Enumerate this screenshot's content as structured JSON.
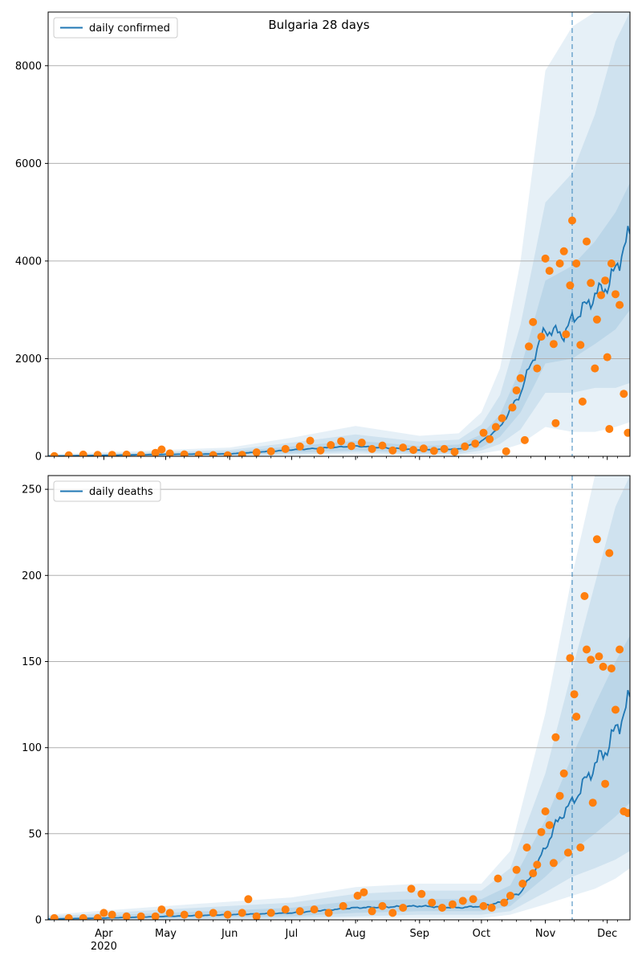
{
  "title": "Bulgaria 28 days",
  "colors": {
    "model_line": "#1f77b4",
    "observed": "#ff7f0e",
    "band": "#1f77b4",
    "grid": "#b0b0b0",
    "vline": "#1f77b4"
  },
  "x_ticks": {
    "major": [
      {
        "label": "Apr",
        "date": "2020-04-01"
      },
      {
        "label": "May",
        "date": "2020-05-01"
      },
      {
        "label": "Jun",
        "date": "2020-06-01"
      },
      {
        "label": "Jul",
        "date": "2020-07-01"
      },
      {
        "label": "Aug",
        "date": "2020-08-01"
      },
      {
        "label": "Sep",
        "date": "2020-09-01"
      },
      {
        "label": "Oct",
        "date": "2020-10-01"
      },
      {
        "label": "Nov",
        "date": "2020-11-01"
      },
      {
        "label": "Dec",
        "date": "2020-12-01"
      }
    ],
    "year_label": "2020"
  },
  "chart_data": [
    {
      "type": "line",
      "legend": "daily confirmed",
      "legend_position": "top-left",
      "grid": "horizontal",
      "xlim": [
        "2020-03-05",
        "2020-12-12"
      ],
      "ylim": [
        0,
        9100
      ],
      "yticks": [
        0,
        2000,
        4000,
        6000,
        8000
      ],
      "forecast_start": "2020-11-14",
      "model_points": [
        [
          "2020-03-05",
          5
        ],
        [
          "2020-04-01",
          20
        ],
        [
          "2020-05-01",
          40
        ],
        [
          "2020-06-01",
          50
        ],
        [
          "2020-07-01",
          130
        ],
        [
          "2020-08-01",
          210
        ],
        [
          "2020-09-01",
          130
        ],
        [
          "2020-09-20",
          150
        ],
        [
          "2020-10-01",
          300
        ],
        [
          "2020-10-10",
          600
        ],
        [
          "2020-10-20",
          1300
        ],
        [
          "2020-10-25",
          1900
        ],
        [
          "2020-11-01",
          2600
        ],
        [
          "2020-11-05",
          2550
        ],
        [
          "2020-11-10",
          2500
        ],
        [
          "2020-11-14",
          2800
        ],
        [
          "2020-11-20",
          3050
        ],
        [
          "2020-11-25",
          3300
        ],
        [
          "2020-12-01",
          3500
        ],
        [
          "2020-12-05",
          3800
        ],
        [
          "2020-12-09",
          4300
        ],
        [
          "2020-12-12",
          4500
        ]
      ],
      "band_inner": [
        [
          "2020-03-05",
          0,
          15
        ],
        [
          "2020-06-01",
          20,
          90
        ],
        [
          "2020-07-01",
          70,
          200
        ],
        [
          "2020-08-01",
          120,
          320
        ],
        [
          "2020-09-01",
          70,
          210
        ],
        [
          "2020-09-20",
          90,
          240
        ],
        [
          "2020-10-01",
          180,
          450
        ],
        [
          "2020-10-10",
          400,
          850
        ],
        [
          "2020-10-20",
          900,
          1800
        ],
        [
          "2020-11-01",
          1900,
          3600
        ],
        [
          "2020-11-14",
          2000,
          3900
        ],
        [
          "2020-11-25",
          2300,
          4400
        ],
        [
          "2020-12-05",
          2600,
          5000
        ],
        [
          "2020-12-12",
          3000,
          5600
        ]
      ],
      "band_middle": [
        [
          "2020-03-05",
          0,
          25
        ],
        [
          "2020-06-01",
          10,
          130
        ],
        [
          "2020-07-01",
          40,
          280
        ],
        [
          "2020-08-01",
          80,
          450
        ],
        [
          "2020-09-01",
          40,
          300
        ],
        [
          "2020-09-20",
          50,
          340
        ],
        [
          "2020-10-01",
          120,
          650
        ],
        [
          "2020-10-10",
          250,
          1250
        ],
        [
          "2020-10-20",
          550,
          2700
        ],
        [
          "2020-11-01",
          1300,
          5200
        ],
        [
          "2020-11-14",
          1300,
          5800
        ],
        [
          "2020-11-25",
          1400,
          7000
        ],
        [
          "2020-12-05",
          1400,
          8500
        ],
        [
          "2020-12-12",
          1500,
          9100
        ]
      ],
      "band_outer": [
        [
          "2020-03-05",
          0,
          40
        ],
        [
          "2020-06-01",
          0,
          180
        ],
        [
          "2020-07-01",
          20,
          380
        ],
        [
          "2020-08-01",
          40,
          620
        ],
        [
          "2020-09-01",
          20,
          420
        ],
        [
          "2020-09-20",
          20,
          470
        ],
        [
          "2020-10-01",
          60,
          900
        ],
        [
          "2020-10-10",
          120,
          1800
        ],
        [
          "2020-10-20",
          250,
          4000
        ],
        [
          "2020-11-01",
          600,
          7900
        ],
        [
          "2020-11-14",
          500,
          8800
        ],
        [
          "2020-11-25",
          500,
          9100
        ],
        [
          "2020-12-05",
          600,
          9100
        ],
        [
          "2020-12-12",
          700,
          9100
        ]
      ],
      "observed": [
        [
          "2020-03-08",
          4
        ],
        [
          "2020-03-15",
          20
        ],
        [
          "2020-03-22",
          35
        ],
        [
          "2020-03-29",
          28
        ],
        [
          "2020-04-05",
          30
        ],
        [
          "2020-04-12",
          35
        ],
        [
          "2020-04-19",
          25
        ],
        [
          "2020-04-26",
          70
        ],
        [
          "2020-04-29",
          140
        ],
        [
          "2020-05-03",
          60
        ],
        [
          "2020-05-10",
          40
        ],
        [
          "2020-05-17",
          30
        ],
        [
          "2020-05-24",
          25
        ],
        [
          "2020-05-31",
          20
        ],
        [
          "2020-06-07",
          30
        ],
        [
          "2020-06-14",
          80
        ],
        [
          "2020-06-21",
          100
        ],
        [
          "2020-06-28",
          150
        ],
        [
          "2020-07-05",
          200
        ],
        [
          "2020-07-10",
          320
        ],
        [
          "2020-07-15",
          120
        ],
        [
          "2020-07-20",
          230
        ],
        [
          "2020-07-25",
          310
        ],
        [
          "2020-07-30",
          210
        ],
        [
          "2020-08-04",
          280
        ],
        [
          "2020-08-09",
          150
        ],
        [
          "2020-08-14",
          220
        ],
        [
          "2020-08-19",
          120
        ],
        [
          "2020-08-24",
          180
        ],
        [
          "2020-08-29",
          130
        ],
        [
          "2020-09-03",
          160
        ],
        [
          "2020-09-08",
          110
        ],
        [
          "2020-09-13",
          150
        ],
        [
          "2020-09-18",
          90
        ],
        [
          "2020-09-23",
          200
        ],
        [
          "2020-09-28",
          260
        ],
        [
          "2020-10-02",
          480
        ],
        [
          "2020-10-05",
          350
        ],
        [
          "2020-10-08",
          600
        ],
        [
          "2020-10-11",
          780
        ],
        [
          "2020-10-13",
          100
        ],
        [
          "2020-10-16",
          1000
        ],
        [
          "2020-10-18",
          1350
        ],
        [
          "2020-10-20",
          1600
        ],
        [
          "2020-10-22",
          330
        ],
        [
          "2020-10-24",
          2250
        ],
        [
          "2020-10-26",
          2750
        ],
        [
          "2020-10-28",
          1800
        ],
        [
          "2020-10-30",
          2450
        ],
        [
          "2020-11-01",
          4050
        ],
        [
          "2020-11-03",
          3800
        ],
        [
          "2020-11-05",
          2300
        ],
        [
          "2020-11-06",
          680
        ],
        [
          "2020-11-08",
          3950
        ],
        [
          "2020-11-10",
          4200
        ],
        [
          "2020-11-11",
          2500
        ],
        [
          "2020-11-13",
          3500
        ],
        [
          "2020-11-14",
          4830
        ],
        [
          "2020-11-16",
          3950
        ],
        [
          "2020-11-18",
          2280
        ],
        [
          "2020-11-19",
          1120
        ],
        [
          "2020-11-21",
          4400
        ],
        [
          "2020-11-23",
          3550
        ],
        [
          "2020-11-25",
          1800
        ],
        [
          "2020-11-26",
          2800
        ],
        [
          "2020-11-28",
          3300
        ],
        [
          "2020-11-30",
          3600
        ],
        [
          "2020-12-01",
          2030
        ],
        [
          "2020-12-02",
          560
        ],
        [
          "2020-12-03",
          3950
        ],
        [
          "2020-12-05",
          3320
        ],
        [
          "2020-12-07",
          3100
        ],
        [
          "2020-12-09",
          1280
        ],
        [
          "2020-12-11",
          480
        ]
      ]
    },
    {
      "type": "line",
      "legend": "daily deaths",
      "legend_position": "top-left",
      "grid": "horizontal",
      "xlim": [
        "2020-03-05",
        "2020-12-12"
      ],
      "ylim": [
        0,
        258
      ],
      "yticks": [
        0,
        50,
        100,
        150,
        200,
        250
      ],
      "forecast_start": "2020-11-14",
      "model_points": [
        [
          "2020-03-05",
          0.5
        ],
        [
          "2020-04-01",
          1
        ],
        [
          "2020-05-01",
          2
        ],
        [
          "2020-06-01",
          3
        ],
        [
          "2020-07-01",
          4
        ],
        [
          "2020-08-01",
          7
        ],
        [
          "2020-09-01",
          8
        ],
        [
          "2020-09-20",
          7
        ],
        [
          "2020-10-01",
          8
        ],
        [
          "2020-10-10",
          10
        ],
        [
          "2020-10-20",
          16
        ],
        [
          "2020-10-25",
          25
        ],
        [
          "2020-11-01",
          42
        ],
        [
          "2020-11-06",
          55
        ],
        [
          "2020-11-10",
          63
        ],
        [
          "2020-11-14",
          68
        ],
        [
          "2020-11-20",
          80
        ],
        [
          "2020-11-25",
          90
        ],
        [
          "2020-12-01",
          100
        ],
        [
          "2020-12-05",
          110
        ],
        [
          "2020-12-09",
          120
        ],
        [
          "2020-12-12",
          128
        ]
      ],
      "band_inner": [
        [
          "2020-03-05",
          0,
          1
        ],
        [
          "2020-05-01",
          1,
          4
        ],
        [
          "2020-07-01",
          2,
          7
        ],
        [
          "2020-08-01",
          4,
          11
        ],
        [
          "2020-09-01",
          5,
          12
        ],
        [
          "2020-10-01",
          5,
          12
        ],
        [
          "2020-10-15",
          8,
          20
        ],
        [
          "2020-11-01",
          25,
          58
        ],
        [
          "2020-11-14",
          40,
          95
        ],
        [
          "2020-11-25",
          50,
          125
        ],
        [
          "2020-12-05",
          60,
          150
        ],
        [
          "2020-12-12",
          68,
          165
        ]
      ],
      "band_middle": [
        [
          "2020-03-05",
          0,
          2
        ],
        [
          "2020-05-01",
          0,
          6
        ],
        [
          "2020-07-01",
          1,
          10
        ],
        [
          "2020-08-01",
          2,
          15
        ],
        [
          "2020-09-01",
          3,
          17
        ],
        [
          "2020-10-01",
          3,
          17
        ],
        [
          "2020-10-15",
          5,
          30
        ],
        [
          "2020-11-01",
          16,
          85
        ],
        [
          "2020-11-14",
          25,
          145
        ],
        [
          "2020-11-25",
          30,
          195
        ],
        [
          "2020-12-05",
          35,
          240
        ],
        [
          "2020-12-12",
          40,
          258
        ]
      ],
      "band_outer": [
        [
          "2020-03-05",
          0,
          3
        ],
        [
          "2020-05-01",
          0,
          8
        ],
        [
          "2020-07-01",
          0,
          13
        ],
        [
          "2020-08-01",
          1,
          19
        ],
        [
          "2020-09-01",
          1,
          21
        ],
        [
          "2020-10-01",
          1,
          21
        ],
        [
          "2020-10-15",
          3,
          40
        ],
        [
          "2020-11-01",
          9,
          120
        ],
        [
          "2020-11-14",
          14,
          200
        ],
        [
          "2020-11-25",
          18,
          258
        ],
        [
          "2020-12-05",
          24,
          258
        ],
        [
          "2020-12-12",
          30,
          258
        ]
      ],
      "observed": [
        [
          "2020-03-08",
          1
        ],
        [
          "2020-03-15",
          1
        ],
        [
          "2020-03-22",
          1
        ],
        [
          "2020-03-29",
          1
        ],
        [
          "2020-04-01",
          4
        ],
        [
          "2020-04-05",
          3
        ],
        [
          "2020-04-12",
          2
        ],
        [
          "2020-04-19",
          2
        ],
        [
          "2020-04-26",
          2
        ],
        [
          "2020-04-29",
          6
        ],
        [
          "2020-05-03",
          4
        ],
        [
          "2020-05-10",
          3
        ],
        [
          "2020-05-17",
          3
        ],
        [
          "2020-05-24",
          4
        ],
        [
          "2020-05-31",
          3
        ],
        [
          "2020-06-07",
          4
        ],
        [
          "2020-06-10",
          12
        ],
        [
          "2020-06-14",
          2
        ],
        [
          "2020-06-21",
          4
        ],
        [
          "2020-06-28",
          6
        ],
        [
          "2020-07-05",
          5
        ],
        [
          "2020-07-12",
          6
        ],
        [
          "2020-07-19",
          4
        ],
        [
          "2020-07-26",
          8
        ],
        [
          "2020-08-02",
          14
        ],
        [
          "2020-08-05",
          16
        ],
        [
          "2020-08-09",
          5
        ],
        [
          "2020-08-14",
          8
        ],
        [
          "2020-08-19",
          4
        ],
        [
          "2020-08-24",
          7
        ],
        [
          "2020-08-28",
          18
        ],
        [
          "2020-09-02",
          15
        ],
        [
          "2020-09-07",
          10
        ],
        [
          "2020-09-12",
          7
        ],
        [
          "2020-09-17",
          9
        ],
        [
          "2020-09-22",
          11
        ],
        [
          "2020-09-27",
          12
        ],
        [
          "2020-10-02",
          8
        ],
        [
          "2020-10-06",
          7
        ],
        [
          "2020-10-09",
          24
        ],
        [
          "2020-10-12",
          10
        ],
        [
          "2020-10-15",
          14
        ],
        [
          "2020-10-18",
          29
        ],
        [
          "2020-10-21",
          21
        ],
        [
          "2020-10-23",
          42
        ],
        [
          "2020-10-26",
          27
        ],
        [
          "2020-10-28",
          32
        ],
        [
          "2020-10-30",
          51
        ],
        [
          "2020-11-01",
          63
        ],
        [
          "2020-11-03",
          55
        ],
        [
          "2020-11-05",
          33
        ],
        [
          "2020-11-06",
          106
        ],
        [
          "2020-11-08",
          72
        ],
        [
          "2020-11-10",
          85
        ],
        [
          "2020-11-12",
          39
        ],
        [
          "2020-11-13",
          152
        ],
        [
          "2020-11-15",
          131
        ],
        [
          "2020-11-16",
          118
        ],
        [
          "2020-11-18",
          42
        ],
        [
          "2020-11-20",
          188
        ],
        [
          "2020-11-21",
          157
        ],
        [
          "2020-11-23",
          151
        ],
        [
          "2020-11-24",
          68
        ],
        [
          "2020-11-26",
          221
        ],
        [
          "2020-11-27",
          153
        ],
        [
          "2020-11-29",
          147
        ],
        [
          "2020-11-30",
          79
        ],
        [
          "2020-12-02",
          213
        ],
        [
          "2020-12-03",
          146
        ],
        [
          "2020-12-05",
          122
        ],
        [
          "2020-12-07",
          157
        ],
        [
          "2020-12-09",
          63
        ],
        [
          "2020-12-11",
          62
        ]
      ]
    }
  ]
}
